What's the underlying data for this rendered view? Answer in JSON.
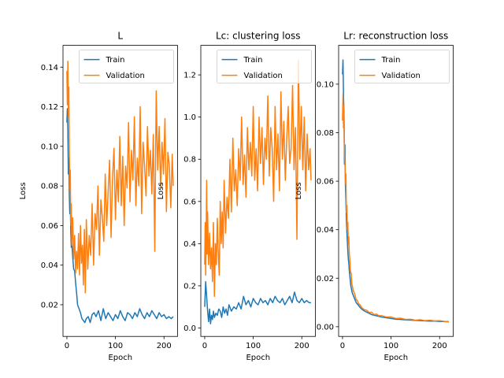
{
  "figure": {
    "background": "#ffffff"
  },
  "chart_data": [
    {
      "type": "line",
      "title": "L",
      "xlabel": "Epoch",
      "ylabel": "Loss",
      "xlim": [
        -8,
        228
      ],
      "ylim": [
        0.004,
        0.151
      ],
      "xticks": [
        0,
        100,
        200
      ],
      "yticks": [
        0.02,
        0.04,
        0.06,
        0.08,
        0.1,
        0.12,
        0.14
      ],
      "ytick_labels": [
        "0.02",
        "0.04",
        "0.06",
        "0.08",
        "0.10",
        "0.12",
        "0.14"
      ],
      "legend": {
        "position": "top-right",
        "entries": [
          "Train",
          "Validation"
        ]
      },
      "series": [
        {
          "name": "Train",
          "color": "#1f77b4",
          "x": [
            0,
            1,
            2,
            3,
            4,
            5,
            6,
            7,
            8,
            9,
            10,
            12,
            14,
            16,
            18,
            20,
            22,
            25,
            28,
            31,
            34,
            37,
            40,
            44,
            48,
            52,
            56,
            60,
            65,
            70,
            75,
            80,
            85,
            90,
            95,
            100,
            105,
            110,
            115,
            120,
            125,
            130,
            135,
            140,
            145,
            150,
            155,
            160,
            165,
            170,
            175,
            180,
            185,
            190,
            195,
            200,
            205,
            210,
            215,
            219
          ],
          "y": [
            0.112,
            0.119,
            0.108,
            0.086,
            0.094,
            0.075,
            0.066,
            0.071,
            0.058,
            0.049,
            0.052,
            0.044,
            0.038,
            0.037,
            0.031,
            0.026,
            0.02,
            0.018,
            0.016,
            0.013,
            0.012,
            0.011,
            0.013,
            0.014,
            0.011,
            0.015,
            0.016,
            0.014,
            0.017,
            0.012,
            0.018,
            0.013,
            0.016,
            0.014,
            0.012,
            0.015,
            0.013,
            0.017,
            0.014,
            0.012,
            0.016,
            0.015,
            0.013,
            0.016,
            0.014,
            0.018,
            0.015,
            0.013,
            0.016,
            0.014,
            0.017,
            0.015,
            0.013,
            0.016,
            0.014,
            0.015,
            0.013,
            0.014,
            0.013,
            0.014
          ]
        },
        {
          "name": "Validation",
          "color": "#ff7f0e",
          "x": [
            0,
            1,
            2,
            3,
            4,
            5,
            6,
            7,
            8,
            9,
            10,
            12,
            14,
            16,
            18,
            20,
            22,
            24,
            26,
            28,
            30,
            32,
            34,
            36,
            38,
            40,
            43,
            46,
            49,
            52,
            55,
            58,
            61,
            64,
            67,
            70,
            73,
            76,
            79,
            82,
            85,
            88,
            91,
            94,
            97,
            100,
            103,
            106,
            109,
            112,
            115,
            118,
            121,
            124,
            127,
            130,
            133,
            136,
            139,
            142,
            145,
            148,
            151,
            154,
            157,
            160,
            163,
            166,
            169,
            172,
            175,
            178,
            181,
            184,
            187,
            190,
            193,
            196,
            199,
            202,
            205,
            208,
            211,
            214,
            217,
            219
          ],
          "y": [
            0.138,
            0.121,
            0.143,
            0.115,
            0.13,
            0.098,
            0.078,
            0.088,
            0.06,
            0.071,
            0.05,
            0.064,
            0.043,
            0.055,
            0.036,
            0.047,
            0.038,
            0.056,
            0.035,
            0.06,
            0.041,
            0.05,
            0.03,
            0.058,
            0.026,
            0.063,
            0.038,
            0.055,
            0.045,
            0.071,
            0.04,
            0.066,
            0.058,
            0.08,
            0.045,
            0.073,
            0.064,
            0.052,
            0.086,
            0.06,
            0.077,
            0.093,
            0.054,
            0.084,
            0.099,
            0.063,
            0.088,
            0.072,
            0.105,
            0.07,
            0.095,
            0.06,
            0.09,
            0.079,
            0.112,
            0.072,
            0.098,
            0.083,
            0.115,
            0.07,
            0.094,
            0.08,
            0.12,
            0.066,
            0.102,
            0.09,
            0.075,
            0.11,
            0.085,
            0.098,
            0.076,
            0.106,
            0.047,
            0.128,
            0.088,
            0.11,
            0.079,
            0.102,
            0.086,
            0.114,
            0.067,
            0.097,
            0.09,
            0.069,
            0.096,
            0.08
          ]
        }
      ]
    },
    {
      "type": "line",
      "title": "Lc: clustering loss",
      "xlabel": "Epoch",
      "ylabel": "Loss",
      "xlim": [
        -8,
        228
      ],
      "ylim": [
        -0.04,
        1.34
      ],
      "xticks": [
        0,
        100,
        200
      ],
      "yticks": [
        0.0,
        0.2,
        0.4,
        0.6,
        0.8,
        1.0,
        1.2
      ],
      "ytick_labels": [
        "0.0",
        "0.2",
        "0.4",
        "0.6",
        "0.8",
        "1.0",
        "1.2"
      ],
      "legend": {
        "position": "top-right",
        "entries": [
          "Train",
          "Validation"
        ]
      },
      "series": [
        {
          "name": "Train",
          "color": "#1f77b4",
          "x": [
            0,
            2,
            4,
            6,
            8,
            10,
            12,
            14,
            16,
            18,
            20,
            23,
            26,
            29,
            32,
            35,
            38,
            41,
            44,
            47,
            50,
            55,
            60,
            65,
            70,
            75,
            80,
            85,
            90,
            95,
            100,
            105,
            110,
            115,
            120,
            125,
            130,
            135,
            140,
            145,
            150,
            155,
            160,
            165,
            170,
            175,
            180,
            185,
            190,
            195,
            200,
            205,
            210,
            215,
            219
          ],
          "y": [
            0.1,
            0.22,
            0.15,
            0.08,
            0.03,
            0.09,
            0.02,
            0.06,
            0.04,
            0.08,
            0.05,
            0.07,
            0.06,
            0.09,
            0.08,
            0.05,
            0.1,
            0.07,
            0.09,
            0.06,
            0.11,
            0.08,
            0.1,
            0.09,
            0.12,
            0.09,
            0.15,
            0.11,
            0.13,
            0.1,
            0.14,
            0.12,
            0.11,
            0.14,
            0.12,
            0.13,
            0.11,
            0.14,
            0.12,
            0.15,
            0.13,
            0.12,
            0.14,
            0.11,
            0.13,
            0.15,
            0.12,
            0.17,
            0.13,
            0.12,
            0.14,
            0.12,
            0.13,
            0.12,
            0.12
          ]
        },
        {
          "name": "Validation",
          "color": "#ff7f0e",
          "x": [
            0,
            1,
            2,
            3,
            4,
            5,
            6,
            8,
            10,
            12,
            14,
            16,
            18,
            20,
            22,
            24,
            26,
            28,
            30,
            32,
            34,
            36,
            38,
            40,
            43,
            46,
            49,
            52,
            55,
            58,
            61,
            64,
            67,
            70,
            73,
            76,
            79,
            82,
            85,
            88,
            91,
            94,
            97,
            100,
            103,
            106,
            109,
            112,
            115,
            118,
            121,
            124,
            127,
            130,
            133,
            136,
            139,
            142,
            145,
            148,
            151,
            154,
            157,
            160,
            163,
            166,
            169,
            172,
            175,
            178,
            181,
            184,
            187,
            190,
            193,
            196,
            199,
            202,
            205,
            208,
            211,
            214,
            217,
            219
          ],
          "y": [
            0.3,
            0.5,
            0.25,
            0.42,
            0.7,
            0.35,
            0.55,
            0.3,
            0.45,
            0.28,
            0.38,
            0.22,
            0.5,
            0.15,
            0.4,
            0.3,
            0.52,
            0.35,
            0.25,
            0.6,
            0.4,
            0.55,
            0.38,
            0.7,
            0.45,
            0.62,
            0.52,
            0.8,
            0.55,
            0.9,
            0.65,
            0.75,
            0.58,
            0.85,
            0.7,
            1.0,
            0.68,
            0.82,
            0.62,
            0.95,
            0.75,
            0.88,
            0.72,
            1.05,
            0.7,
            0.85,
            0.65,
            1.0,
            0.78,
            0.95,
            0.68,
            0.9,
            0.8,
            1.1,
            0.72,
            0.95,
            0.85,
            0.6,
            1.05,
            0.75,
            0.92,
            0.65,
            1.12,
            0.8,
            0.98,
            0.7,
            0.9,
            1.05,
            0.78,
            0.85,
            1.15,
            0.75,
            0.95,
            0.42,
            1.27,
            0.8,
            1.05,
            0.75,
            1.0,
            0.65,
            0.92,
            0.75,
            0.85,
            0.7
          ]
        }
      ]
    },
    {
      "type": "line",
      "title": "Lr: reconstruction loss",
      "xlabel": "Epoch",
      "ylabel": "Loss",
      "xlim": [
        -8,
        228
      ],
      "ylim": [
        -0.004,
        0.116
      ],
      "xticks": [
        0,
        100,
        200
      ],
      "yticks": [
        0.0,
        0.02,
        0.04,
        0.06,
        0.08,
        0.1
      ],
      "ytick_labels": [
        "0.00",
        "0.02",
        "0.04",
        "0.06",
        "0.08",
        "0.10"
      ],
      "legend": {
        "position": "top-right",
        "entries": [
          "Train",
          "Validation"
        ]
      },
      "series": [
        {
          "name": "Train",
          "color": "#1f77b4",
          "x": [
            0,
            1,
            2,
            3,
            4,
            5,
            6,
            7,
            8,
            9,
            10,
            11,
            12,
            13,
            14,
            15,
            16,
            17,
            18,
            19,
            20,
            22,
            24,
            26,
            28,
            30,
            33,
            36,
            40,
            45,
            50,
            55,
            60,
            70,
            80,
            90,
            100,
            110,
            120,
            130,
            140,
            150,
            160,
            170,
            180,
            190,
            200,
            210,
            219
          ],
          "y": [
            0.104,
            0.11,
            0.096,
            0.088,
            0.067,
            0.075,
            0.058,
            0.052,
            0.044,
            0.039,
            0.035,
            0.031,
            0.028,
            0.026,
            0.023,
            0.021,
            0.019,
            0.017,
            0.016,
            0.015,
            0.014,
            0.013,
            0.012,
            0.011,
            0.01,
            0.0095,
            0.0088,
            0.008,
            0.0072,
            0.0065,
            0.006,
            0.0055,
            0.005,
            0.0045,
            0.004,
            0.0037,
            0.0034,
            0.0031,
            0.003,
            0.0028,
            0.0027,
            0.0026,
            0.0025,
            0.0024,
            0.0023,
            0.0023,
            0.0022,
            0.0021,
            0.0021
          ]
        },
        {
          "name": "Validation",
          "color": "#ff7f0e",
          "x": [
            0,
            1,
            2,
            3,
            4,
            5,
            6,
            7,
            8,
            9,
            10,
            11,
            12,
            13,
            14,
            15,
            16,
            17,
            18,
            19,
            20,
            22,
            24,
            26,
            28,
            30,
            33,
            36,
            40,
            45,
            50,
            55,
            60,
            65,
            70,
            75,
            80,
            90,
            100,
            110,
            120,
            130,
            140,
            150,
            160,
            170,
            180,
            190,
            200,
            210,
            219
          ],
          "y": [
            0.085,
            0.096,
            0.082,
            0.091,
            0.072,
            0.068,
            0.059,
            0.063,
            0.047,
            0.05,
            0.04,
            0.043,
            0.034,
            0.037,
            0.03,
            0.028,
            0.024,
            0.022,
            0.022,
            0.018,
            0.017,
            0.015,
            0.014,
            0.013,
            0.011,
            0.011,
            0.0095,
            0.009,
            0.0078,
            0.007,
            0.0068,
            0.0058,
            0.006,
            0.005,
            0.0052,
            0.0045,
            0.0046,
            0.004,
            0.004,
            0.0034,
            0.0035,
            0.003,
            0.0031,
            0.0027,
            0.0029,
            0.0025,
            0.0027,
            0.0024,
            0.0025,
            0.0022,
            0.002
          ]
        }
      ]
    }
  ]
}
